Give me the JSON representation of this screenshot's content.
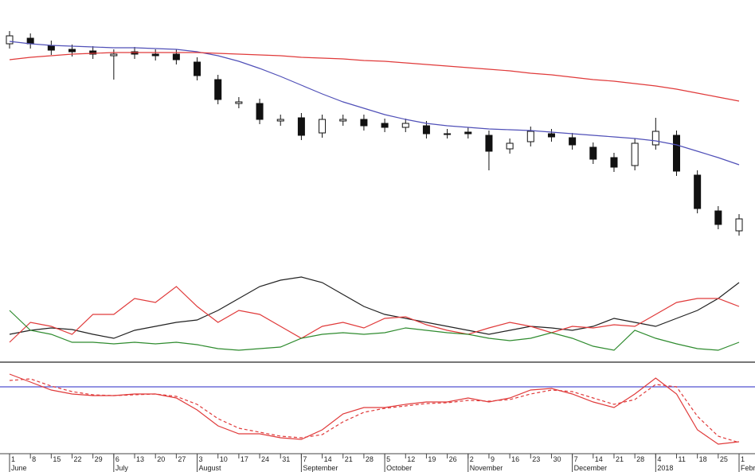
{
  "chart_data": [
    {
      "type": "candlestick",
      "categories": [
        "1",
        "8",
        "15",
        "22",
        "29",
        "6",
        "13",
        "20",
        "27",
        "3",
        "10",
        "17",
        "24",
        "31",
        "7",
        "14",
        "21",
        "28",
        "5",
        "12",
        "19",
        "26",
        "2",
        "9",
        "16",
        "23",
        "30",
        "7",
        "14",
        "21",
        "28",
        "4",
        "11",
        "18",
        "25",
        "1"
      ],
      "month_labels": [
        "June",
        null,
        null,
        null,
        null,
        "July",
        null,
        null,
        null,
        "August",
        null,
        null,
        null,
        null,
        "September",
        null,
        null,
        null,
        "October",
        null,
        null,
        null,
        "November",
        null,
        null,
        null,
        null,
        "December",
        null,
        null,
        null,
        "2018",
        null,
        null,
        null,
        "Febru"
      ],
      "ylim": [
        0,
        280
      ],
      "open": [
        245,
        252,
        243,
        238,
        236,
        230,
        235,
        232,
        232,
        222,
        200,
        170,
        170,
        148,
        152,
        133,
        148,
        150,
        145,
        140,
        142,
        132,
        134,
        130,
        113,
        122,
        132,
        127,
        115,
        102,
        92,
        118,
        130,
        80,
        35,
        10
      ],
      "high": [
        261,
        258,
        249,
        244,
        242,
        238,
        241,
        238,
        238,
        228,
        206,
        178,
        176,
        156,
        158,
        156,
        156,
        156,
        151,
        151,
        148,
        138,
        140,
        136,
        126,
        141,
        138,
        133,
        121,
        108,
        126,
        152,
        136,
        86,
        41,
        31
      ],
      "low": [
        239,
        239,
        231,
        229,
        226,
        200,
        226,
        224,
        219,
        199,
        169,
        164,
        144,
        142,
        124,
        127,
        142,
        136,
        134,
        134,
        126,
        126,
        126,
        86,
        107,
        116,
        122,
        112,
        94,
        84,
        86,
        112,
        79,
        32,
        12,
        4
      ],
      "close": [
        255,
        245,
        237,
        235,
        232,
        232,
        232,
        230,
        225,
        205,
        175,
        172,
        150,
        150,
        130,
        150,
        150,
        142,
        140,
        145,
        132,
        132,
        132,
        110,
        120,
        135,
        128,
        118,
        100,
        90,
        120,
        135,
        85,
        38,
        18,
        25
      ],
      "series": [
        {
          "color": "#5050b8",
          "values": [
            248,
            245,
            243,
            242,
            241,
            240,
            240,
            239,
            238,
            235,
            230,
            223,
            214,
            204,
            193,
            182,
            172,
            164,
            156,
            150,
            145,
            142,
            140,
            138,
            137,
            136,
            134,
            132,
            130,
            128,
            126,
            123,
            118,
            110,
            102,
            93
          ]
        },
        {
          "color": "#e03a3a",
          "values": [
            225,
            228,
            230,
            232,
            233,
            234,
            234,
            234,
            234,
            234,
            233,
            232,
            231,
            230,
            228,
            227,
            226,
            224,
            223,
            221,
            219,
            217,
            215,
            213,
            211,
            208,
            206,
            203,
            200,
            198,
            195,
            192,
            188,
            183,
            178,
            173
          ]
        }
      ]
    },
    {
      "type": "line",
      "ylim": [
        0,
        110
      ],
      "series": [
        {
          "color": "#222222",
          "values": [
            30,
            35,
            38,
            36,
            30,
            25,
            35,
            40,
            45,
            48,
            60,
            75,
            90,
            98,
            102,
            95,
            80,
            65,
            55,
            50,
            45,
            40,
            35,
            30,
            35,
            40,
            38,
            35,
            40,
            50,
            45,
            40,
            50,
            60,
            75,
            95
          ]
        },
        {
          "color": "#e03a3a",
          "values": [
            20,
            45,
            40,
            30,
            55,
            55,
            75,
            70,
            90,
            65,
            45,
            60,
            55,
            40,
            25,
            40,
            45,
            38,
            50,
            52,
            42,
            35,
            30,
            38,
            45,
            40,
            32,
            40,
            38,
            42,
            40,
            55,
            70,
            75,
            75,
            65
          ]
        },
        {
          "color": "#2e8b2e",
          "values": [
            60,
            35,
            30,
            20,
            20,
            18,
            20,
            18,
            20,
            17,
            12,
            10,
            12,
            14,
            25,
            30,
            32,
            30,
            32,
            38,
            35,
            32,
            30,
            25,
            22,
            25,
            32,
            25,
            15,
            10,
            35,
            25,
            18,
            12,
            10,
            20
          ]
        }
      ]
    },
    {
      "type": "line",
      "ylim": [
        0,
        108
      ],
      "reference_line": 82,
      "reference_color": "#5050d0",
      "series": [
        {
          "color": "#e03a3a",
          "dash": false,
          "values": [
            98,
            88,
            78,
            73,
            71,
            71,
            73,
            73,
            68,
            53,
            33,
            23,
            23,
            18,
            16,
            28,
            48,
            56,
            56,
            60,
            63,
            63,
            68,
            63,
            68,
            78,
            80,
            73,
            63,
            56,
            73,
            93,
            73,
            28,
            10,
            13
          ]
        },
        {
          "color": "#e03a3a",
          "dash": true,
          "values": [
            90,
            92,
            83,
            76,
            72,
            71,
            72,
            73,
            70,
            60,
            42,
            30,
            25,
            20,
            18,
            22,
            38,
            50,
            55,
            58,
            61,
            62,
            65,
            64,
            66,
            73,
            78,
            76,
            68,
            60,
            66,
            85,
            82,
            45,
            20,
            12
          ]
        }
      ]
    }
  ]
}
